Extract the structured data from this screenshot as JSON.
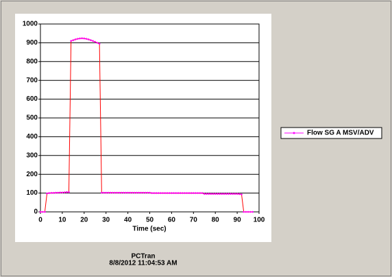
{
  "chart_data": {
    "type": "line",
    "x_label": "Time (sec)",
    "x": [
      0,
      1,
      2,
      3,
      4,
      5,
      6,
      7,
      8,
      9,
      10,
      11,
      12,
      13,
      14,
      15,
      16,
      17,
      18,
      19,
      20,
      21,
      22,
      23,
      24,
      25,
      26,
      27,
      28,
      29,
      30,
      31,
      32,
      33,
      34,
      35,
      36,
      37,
      38,
      39,
      40,
      41,
      42,
      43,
      44,
      45,
      46,
      47,
      48,
      49,
      50,
      51,
      52,
      53,
      54,
      55,
      56,
      57,
      58,
      59,
      60,
      61,
      62,
      63,
      64,
      65,
      66,
      67,
      68,
      69,
      70,
      71,
      72,
      73,
      74,
      75,
      76,
      77,
      78,
      79,
      80,
      81,
      82,
      83,
      84,
      85,
      86,
      87,
      88,
      89,
      90,
      91,
      92,
      93,
      94,
      95,
      96,
      97
    ],
    "series": [
      {
        "name": "Flow SG A MSV/ADV",
        "color": "#ff0000",
        "marker_color": "#ff00ff",
        "values": [
          0,
          0,
          0,
          98,
          100,
          101,
          101,
          102,
          102,
          103,
          103,
          104,
          105,
          105,
          910,
          914,
          918,
          921,
          923,
          924,
          923,
          921,
          918,
          914,
          910,
          905,
          900,
          895,
          102,
          102,
          102,
          102,
          102,
          102,
          102,
          102,
          102,
          102,
          102,
          102,
          102,
          102,
          102,
          102,
          102,
          102,
          102,
          102,
          102,
          102,
          102,
          100,
          100,
          100,
          100,
          100,
          100,
          100,
          100,
          100,
          100,
          100,
          100,
          100,
          100,
          100,
          100,
          100,
          100,
          100,
          100,
          100,
          100,
          100,
          100,
          96,
          96,
          96,
          96,
          96,
          96,
          96,
          96,
          96,
          96,
          96,
          96,
          96,
          96,
          96,
          96,
          95,
          93,
          0,
          0,
          0,
          0,
          0
        ]
      }
    ],
    "xlim": [
      0,
      100
    ],
    "xticks": [
      0,
      10,
      20,
      30,
      40,
      50,
      60,
      70,
      80,
      90,
      100
    ],
    "ylim": [
      0,
      1000
    ],
    "yticks": [
      0,
      100,
      200,
      300,
      400,
      500,
      600,
      700,
      800,
      900,
      1000
    ],
    "grid": true,
    "legend": "right",
    "footer": [
      "PCTran",
      "8/8/2012 11:04:53 AM"
    ]
  }
}
